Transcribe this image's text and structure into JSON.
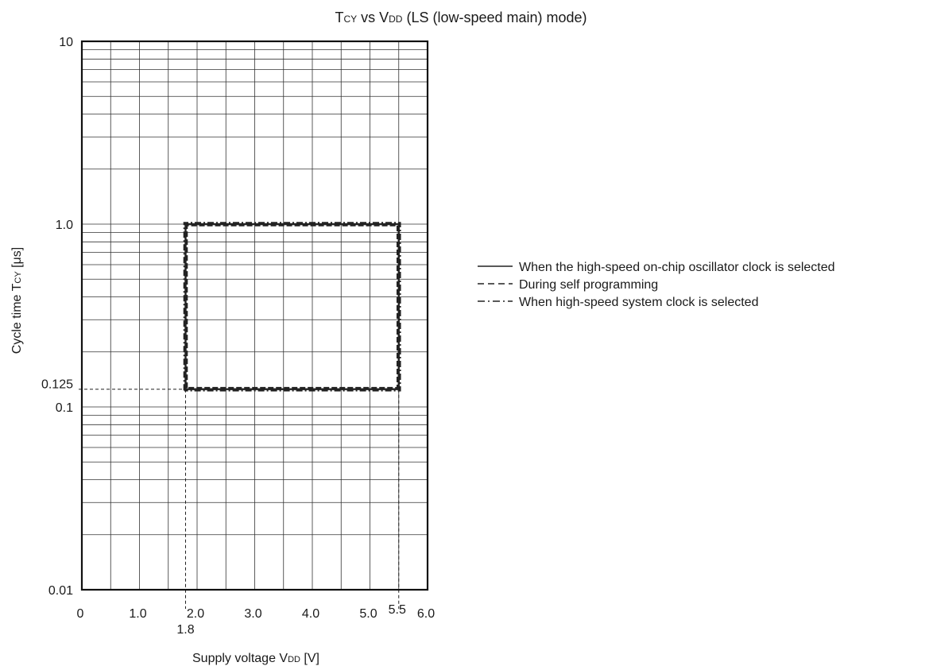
{
  "chart_data": {
    "type": "line",
    "title": {
      "main": "T",
      "main_sub": "CY",
      "vs": " vs V",
      "vs_sub": "DD",
      "rest": " (LS (low-speed main) mode)"
    },
    "xlabel": {
      "main": "Supply voltage V",
      "sub": "DD",
      "rest": " [V]"
    },
    "ylabel": {
      "main": "Cycle time T",
      "sub": "CY",
      "rest": " [μs]"
    },
    "xlim": [
      0,
      6.0
    ],
    "ylim": [
      0.01,
      10
    ],
    "y_scale": "log",
    "grid": true,
    "x_ticks": [
      {
        "value": 0,
        "label": "0"
      },
      {
        "value": 1,
        "label": "1.0"
      },
      {
        "value": 2,
        "label": "2.0"
      },
      {
        "value": 3,
        "label": "3.0"
      },
      {
        "value": 4,
        "label": "4.0"
      },
      {
        "value": 5,
        "label": "5.0"
      },
      {
        "value": 6,
        "label": "6.0"
      }
    ],
    "y_ticks": [
      {
        "value": 0.01,
        "label": "0.01"
      },
      {
        "value": 0.1,
        "label": "0.1"
      },
      {
        "value": 1,
        "label": "1.0"
      },
      {
        "value": 10,
        "label": "10"
      }
    ],
    "annotations": {
      "x_marks": [
        {
          "value": 1.8,
          "label": "1.8"
        },
        {
          "value": 5.5,
          "label": "5.5"
        }
      ],
      "y_marks": [
        {
          "value": 0.125,
          "label": "0.125"
        }
      ]
    },
    "legend_position": "right",
    "series": [
      {
        "name": "When the high-speed on-chip oscillator clock is selected",
        "style": "solid",
        "points": [
          [
            1.8,
            0.125
          ],
          [
            1.8,
            1.0
          ],
          [
            5.5,
            1.0
          ],
          [
            5.5,
            0.125
          ],
          [
            1.8,
            0.125
          ]
        ]
      },
      {
        "name": "During self programming",
        "style": "dashed",
        "points": [
          [
            1.8,
            0.125
          ],
          [
            1.8,
            1.0
          ],
          [
            5.5,
            1.0
          ],
          [
            5.5,
            0.125
          ],
          [
            1.8,
            0.125
          ]
        ]
      },
      {
        "name": "When high-speed system clock is selected",
        "style": "dashdot",
        "points": [
          [
            1.8,
            0.125
          ],
          [
            1.8,
            1.0
          ],
          [
            5.5,
            1.0
          ],
          [
            5.5,
            0.125
          ],
          [
            1.8,
            0.125
          ]
        ]
      }
    ]
  }
}
